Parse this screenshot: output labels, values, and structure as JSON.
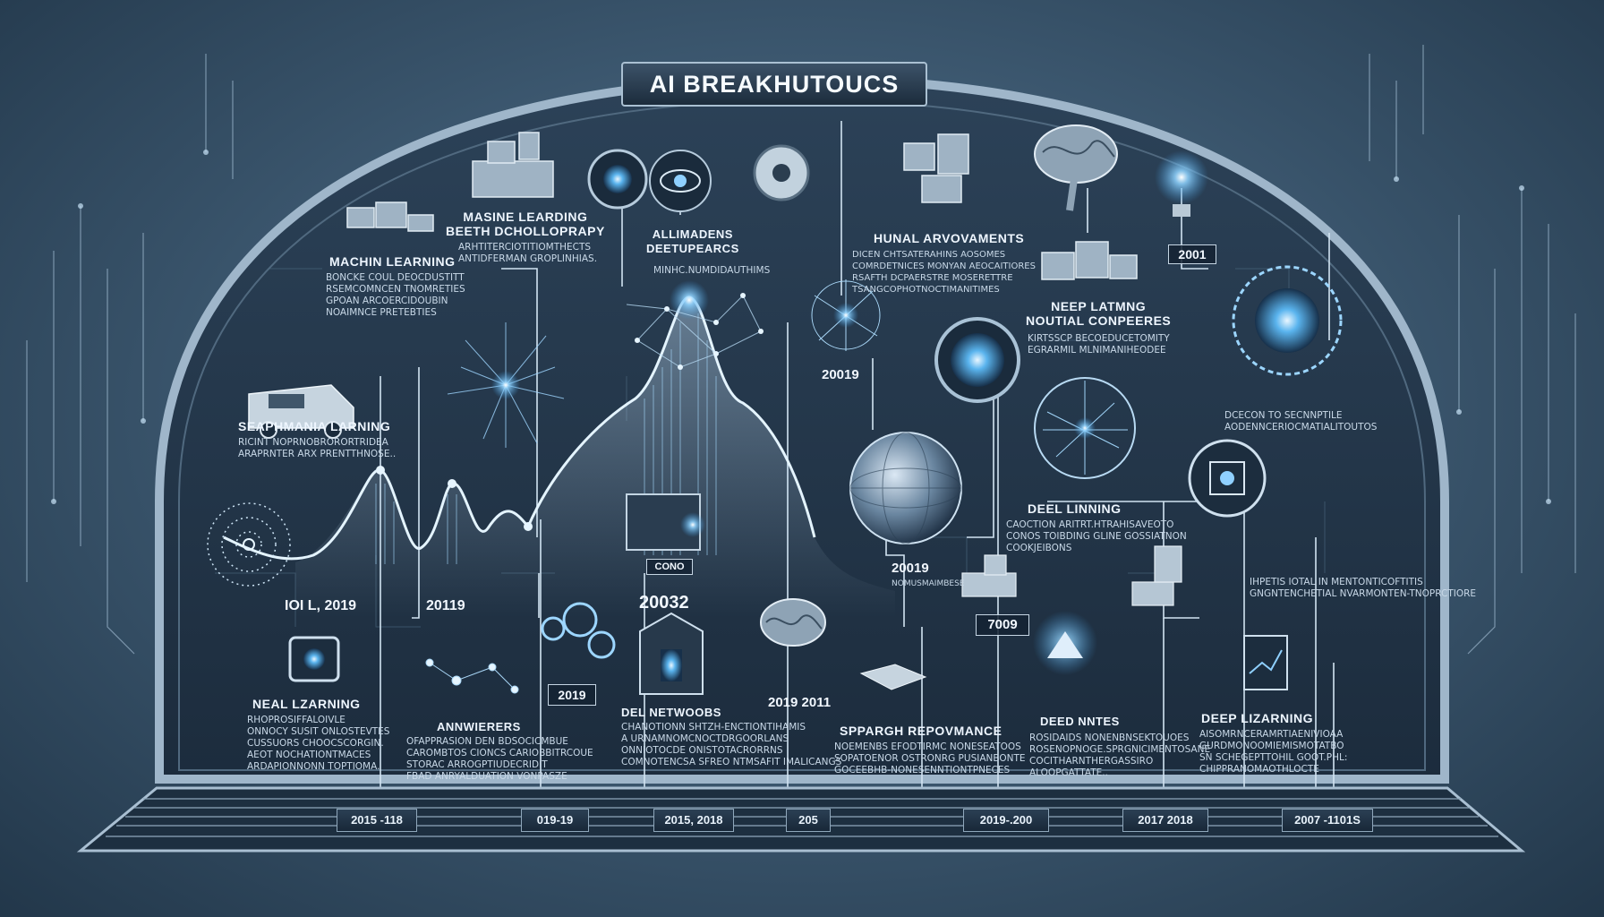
{
  "header": {
    "title": "AI BREAKHUTOUCS"
  },
  "items": [
    {
      "label": "MACHIN LEARNING",
      "body": "BONCKE COUL DEOCDUSTITT\nRSEMCOMNCEN TNOMRETIES\nGPOAN ARCOERCIDOUBIN\nNOAIMNCE PRETEBTIES"
    },
    {
      "label": "MASINE LEARDING\nBEETH DCHOLLOPRAPY",
      "body": "ARHTITERCIOTITIOMTHECTS\nANTIDFERMAN GROPLINHIAS."
    },
    {
      "label": "ALLIMADENS\nDEETUPEARCS",
      "body": "MINHC.NUMDIDAUTHIMS"
    },
    {
      "label": "HUNAL ARVOVAMENTS",
      "body": "DICEN CHTSATERAHINS AOSOMES\nCOMRDETNICES MONYAN AEOCAITIORES\nRSAFTH DCPAERSTRE MOSERETTRE\nTSANGCOPHOTNOCTIMANITIMES"
    },
    {
      "label": "NEEP LATMNG\nNOUTIAL CONPEERES",
      "body": "KIRTSSCP BECOEDUCETOMITY\nEGRARMIL MLNIMANIHEODEE"
    },
    {
      "label": "SEAPHMANIA LARNING",
      "body": "RICINT NOPRNOBRORORTRIDEA\nARAPRNTER ARX PRENTTHNOSE.."
    },
    {
      "label": "DEEL LINNING",
      "body": "CAOCTION ARITRT.HTRAHISAVEOTO\nCONOS TOIBDING GLINE GOSSIATNON\nCOOKJEIBONS"
    },
    {
      "label": "",
      "body": "DCECON TO SECNNPTILE\nAODENNCERIOCMATIALITOUTOS"
    },
    {
      "label": "NEAL LZARNING",
      "body": "RHOPROSIFFALOIVLE\nONNOCY SUSIT ONLOSTEVTES\nCUSSUORS CHOOCSCORGIN.\nAEOT NOCHATIONTMACES\nARDAPIONNONN TOPTIOMA."
    },
    {
      "label": "ANNWIERERS",
      "body": "OFAPPRASION DEN BDSOCICMBUE\nCAROMBTOS CIONCS CARIOBBITRCOUE\nSTORAC ARROGPTIUDECRIDIT\nFBAD ANRYALDUATION VONPASZE"
    },
    {
      "label": "DEL NETWOOBS",
      "body": "CHANOTIONN SHTZH-ENCTIONTIHAMIS\nA URNAMNOMCNOCTDRGOORLANS\nONNIOTOCDE ONISTOTACRORRNS\nCOMNOTENCSA SFREO NTMSAFIT IMALICANGS"
    },
    {
      "label": "SPPARGH REPOVMANCE",
      "body": "NOEMENBS EFODTIRMC NONESEATOOS\nSOPATOENOR OSTRONRG PUSIANBONTE\nGOCEEBHB-NONESENNTIONTPNECES"
    },
    {
      "label": "DEED NNTES",
      "body": "ROSIDAIDS NONENBNSEKTOUOES\nROSENOPNOGE.SPRGNICIMENTOSANE\nCOCITHARNTHERGASSIRO\nALOOPGATTATE.."
    },
    {
      "label": "DEEP LIZARNING",
      "body": "AISOMRNCERAMRTIAENIVIOAA\nGURDMONOOMIEMISMOTATBO\nSN SCHEGEPTTOHIL GOOT.PHL:\nCHIPPRANOMAOTHLOCTE"
    },
    {
      "label": "",
      "body": "IHPETIS IOTAL IN MENTONTICOFTITIS\nGNGNTENCHETIAL NVARMONTEN-TNOPRCTIORE"
    }
  ],
  "years": [
    "2001",
    "20019",
    "20019",
    "IOI L, 2019",
    "20119",
    "20032",
    "7009",
    "2019",
    "2019 2011"
  ],
  "chip": "CONO",
  "timeline": [
    "2015 -118",
    "019-19",
    "2015, 2018",
    "205",
    "2019-.200",
    "2017 2018",
    "2007 -1101S"
  ]
}
